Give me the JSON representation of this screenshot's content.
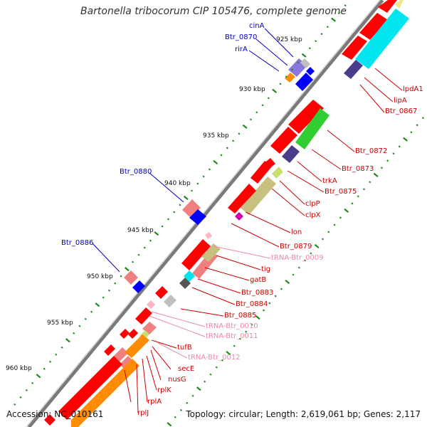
{
  "title": "Bartonella tribocorum CIP 105476, complete genome",
  "footer": {
    "accession": "Accession: NC_010161",
    "summary": "Topology: circular; Length: 2,619,061 bp; Genes: 2,117"
  },
  "colors": {
    "cds": "#ff0000",
    "cds_light": "#f08080",
    "trna": "#ffb6c1",
    "orf_blue": "#0000ff",
    "label_red": "#cc0000",
    "label_blue": "#0000cc",
    "label_pink": "#ee88aa",
    "tick": "#1e8a1e",
    "backbone": "#808080",
    "tan": "#c8c080",
    "green": "#32cd32",
    "cyan": "#00e5ee",
    "purple": "#483d8b",
    "orange": "#ff8c00"
  },
  "kbp_ticks": [
    "925 kbp",
    "930 kbp",
    "935 kbp",
    "940 kbp",
    "945 kbp",
    "950 kbp",
    "955 kbp",
    "960 kbp"
  ],
  "labels_right": [
    "lpdA1",
    "lipA",
    "Btr_0867",
    "Btr_0872",
    "Btr_0873",
    "trkA",
    "Btr_0875",
    "clpP",
    "clpX",
    "lon",
    "Btr_0879",
    "tRNA-Btr_0009",
    "tig",
    "gatB",
    "Btr_0883",
    "Btr_0884",
    "Btr_0885",
    "tRNA-Btr_0010",
    "tRNA-Btr_0011",
    "tufB",
    "tRNA-Btr_0012",
    "secE",
    "nusG",
    "rplK",
    "rplA",
    "rplJ"
  ],
  "labels_left": [
    "cinA",
    "Btr_0870",
    "rirA",
    "Btr_0880",
    "Btr_0886"
  ]
}
